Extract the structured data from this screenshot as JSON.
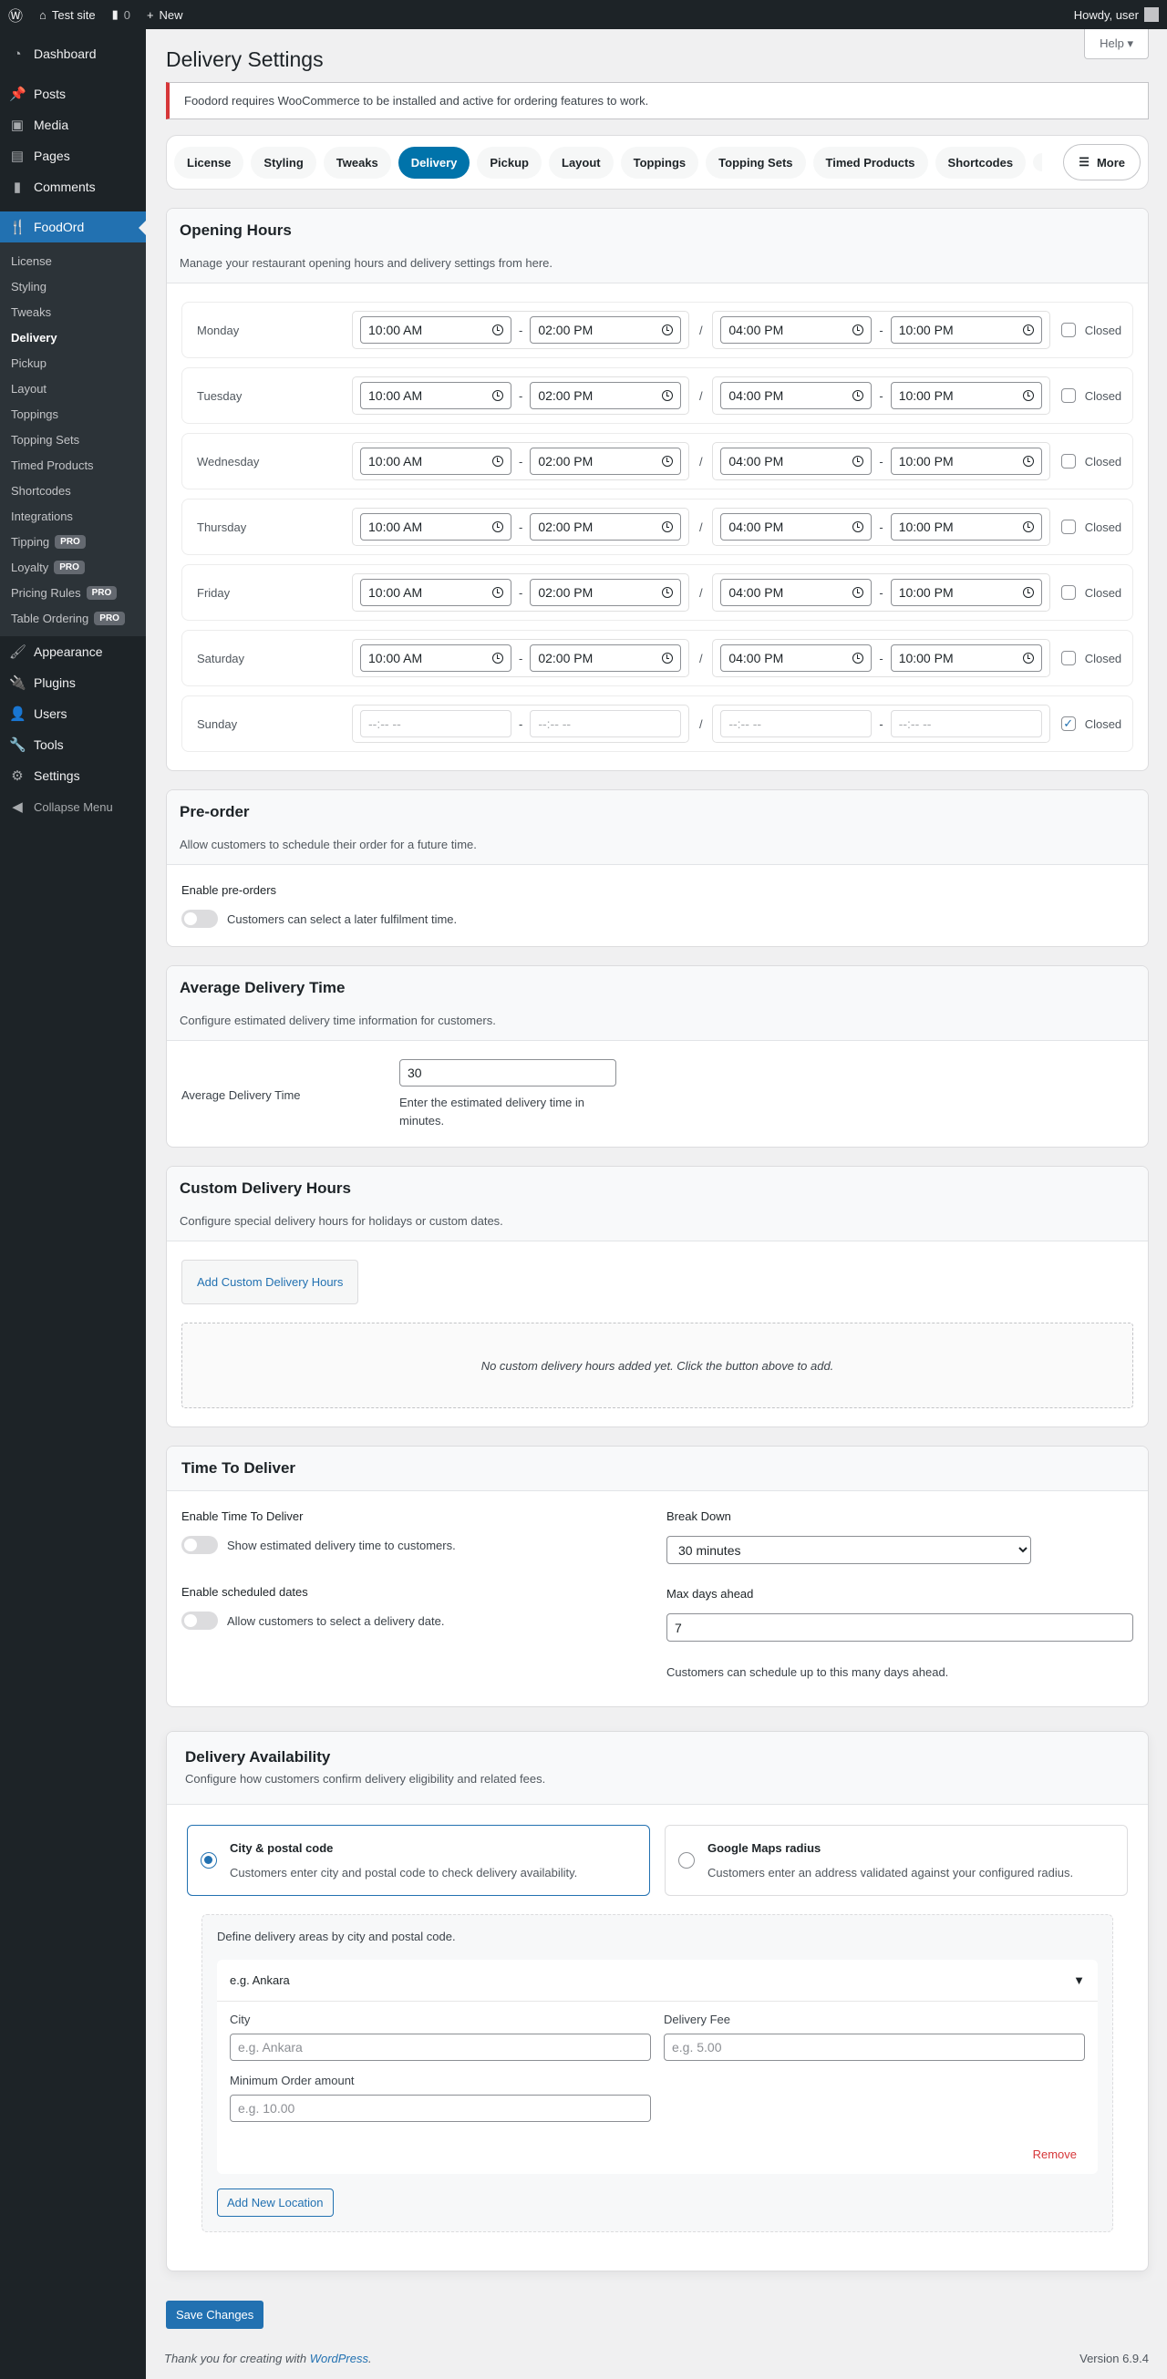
{
  "adminbar": {
    "site": "Test site",
    "comments": "0",
    "new": "New",
    "howdy": "Howdy, user"
  },
  "sidebar": {
    "top": [
      {
        "label": "Dashboard",
        "icon": "dashboard-icon"
      },
      {
        "label": "Posts",
        "icon": "pin-icon"
      },
      {
        "label": "Media",
        "icon": "media-icon"
      },
      {
        "label": "Pages",
        "icon": "pages-icon"
      },
      {
        "label": "Comments",
        "icon": "comment-icon"
      }
    ],
    "plugin": "FoodOrd",
    "sub": [
      {
        "label": "License"
      },
      {
        "label": "Styling"
      },
      {
        "label": "Tweaks"
      },
      {
        "label": "Delivery",
        "current": true
      },
      {
        "label": "Pickup"
      },
      {
        "label": "Layout"
      },
      {
        "label": "Toppings"
      },
      {
        "label": "Topping Sets"
      },
      {
        "label": "Timed Products"
      },
      {
        "label": "Shortcodes"
      },
      {
        "label": "Integrations"
      },
      {
        "label": "Tipping",
        "badge": "PRO"
      },
      {
        "label": "Loyalty",
        "badge": "PRO"
      },
      {
        "label": "Pricing Rules",
        "badge": "PRO"
      },
      {
        "label": "Table Ordering",
        "badge": "PRO"
      }
    ],
    "bottom": [
      {
        "label": "Appearance"
      },
      {
        "label": "Plugins"
      },
      {
        "label": "Users"
      },
      {
        "label": "Tools"
      },
      {
        "label": "Settings"
      }
    ],
    "collapse": "Collapse Menu"
  },
  "help": "Help",
  "title": "Delivery Settings",
  "notice": "Foodord requires WooCommerce to be installed and active for ordering features to work.",
  "tabs": [
    "License",
    "Styling",
    "Tweaks",
    "Delivery",
    "Pickup",
    "Layout",
    "Toppings",
    "Topping Sets",
    "Timed Products",
    "Shortcodes"
  ],
  "active_tab": "Delivery",
  "more": "More",
  "opening": {
    "title": "Opening Hours",
    "desc": "Manage your restaurant opening hours and delivery settings from here.",
    "closed_label": "Closed",
    "days": [
      {
        "day": "Monday",
        "t": [
          "10:00 AM",
          "02:00 PM",
          "04:00 PM",
          "10:00 PM"
        ],
        "closed": false
      },
      {
        "day": "Tuesday",
        "t": [
          "10:00 AM",
          "02:00 PM",
          "04:00 PM",
          "10:00 PM"
        ],
        "closed": false
      },
      {
        "day": "Wednesday",
        "t": [
          "10:00 AM",
          "02:00 PM",
          "04:00 PM",
          "10:00 PM"
        ],
        "closed": false
      },
      {
        "day": "Thursday",
        "t": [
          "10:00 AM",
          "02:00 PM",
          "04:00 PM",
          "10:00 PM"
        ],
        "closed": false
      },
      {
        "day": "Friday",
        "t": [
          "10:00 AM",
          "02:00 PM",
          "04:00 PM",
          "10:00 PM"
        ],
        "closed": false
      },
      {
        "day": "Saturday",
        "t": [
          "10:00 AM",
          "02:00 PM",
          "04:00 PM",
          "10:00 PM"
        ],
        "closed": false
      },
      {
        "day": "Sunday",
        "t": [
          "--:-- --",
          "--:-- --",
          "--:-- --",
          "--:-- --"
        ],
        "closed": true
      }
    ]
  },
  "preorder": {
    "title": "Pre-order",
    "desc": "Allow customers to schedule their order for a future time.",
    "label": "Enable pre-orders",
    "toggle": "Customers can select a later fulfilment time.",
    "enabled": false
  },
  "avg": {
    "title": "Average Delivery Time",
    "desc": "Configure estimated delivery time information for customers.",
    "label": "Average Delivery Time",
    "value": "30",
    "help": "Enter the estimated delivery time in minutes."
  },
  "custom": {
    "title": "Custom Delivery Hours",
    "desc": "Configure special delivery hours for holidays or custom dates.",
    "button": "Add Custom Delivery Hours",
    "empty": "No custom delivery hours added yet. Click the button above to add."
  },
  "ttd": {
    "title": "Time To Deliver",
    "enable_label": "Enable Time To Deliver",
    "enable_toggle": "Show estimated delivery time to customers.",
    "enabled": false,
    "sched_label": "Enable scheduled dates",
    "sched_toggle": "Allow customers to select a delivery date.",
    "sched_enabled": false,
    "breakdown_label": "Break Down",
    "breakdown": "30 minutes",
    "max_label": "Max days ahead",
    "max": "7",
    "max_help": "Customers can schedule up to this many days ahead."
  },
  "avail": {
    "title": "Delivery Availability",
    "desc": "Configure how customers confirm delivery eligibility and related fees.",
    "options": [
      {
        "title": "City & postal code",
        "desc": "Customers enter city and postal code to check delivery availability.",
        "selected": true
      },
      {
        "title": "Google Maps radius",
        "desc": "Customers enter an address validated against your configured radius.",
        "selected": false
      }
    ],
    "define": "Define delivery areas by city and postal code.",
    "location": {
      "header": "e.g. Ankara",
      "city_label": "City",
      "city_ph": "e.g. Ankara",
      "fee_label": "Delivery Fee",
      "fee_ph": "e.g. 5.00",
      "min_label": "Minimum Order amount",
      "min_ph": "e.g. 10.00",
      "remove": "Remove"
    },
    "add": "Add New Location"
  },
  "save": "Save Changes",
  "footer": {
    "thanks": "Thank you for creating with ",
    "link": "WordPress",
    "end": ".",
    "version": "Version 6.9.4"
  },
  "colors": {
    "accent": "#2271b1",
    "tab_active": "#0073aa",
    "notice_error": "#d63638",
    "remove": "#d63638"
  }
}
